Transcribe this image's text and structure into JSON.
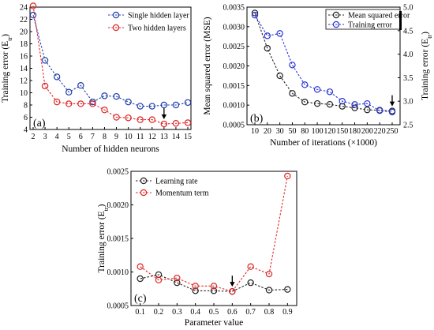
{
  "chart_data": [
    {
      "type": "line",
      "panel_label": "(a)",
      "xlabel": "Number of hidden neurons",
      "ylabel": "Training error (E",
      "ylabel_sub": "tr",
      "ylabel_tail": ")",
      "xlim": [
        2,
        15
      ],
      "ylim": [
        4,
        24
      ],
      "x_ticks": [
        2,
        3,
        4,
        5,
        6,
        7,
        8,
        9,
        10,
        11,
        12,
        13,
        14,
        15
      ],
      "y_ticks": [
        4,
        6,
        8,
        10,
        12,
        14,
        16,
        18,
        20,
        22,
        24
      ],
      "legend_position": "top-right",
      "x": [
        2,
        3,
        4,
        5,
        6,
        7,
        8,
        9,
        10,
        11,
        12,
        13,
        14,
        15
      ],
      "series": [
        {
          "name": "Single hidden layer",
          "color": "#1f3fa8",
          "values": [
            22.7,
            15.3,
            12.6,
            10.1,
            11.2,
            8.5,
            9.5,
            9.4,
            8.5,
            7.8,
            7.8,
            8.0,
            8.0,
            8.4
          ]
        },
        {
          "name": "Two hidden layers",
          "color": "#e02424",
          "values": [
            24.2,
            11.1,
            8.5,
            8.2,
            8.2,
            8.2,
            7.2,
            6.0,
            5.9,
            5.6,
            5.6,
            4.9,
            5.0,
            5.1
          ]
        }
      ],
      "arrow_marker": {
        "x": 13,
        "y": 4.9
      }
    },
    {
      "type": "line",
      "panel_label": "(b)",
      "xlabel": "Number of iterations (×1000)",
      "ylabel": "Mean squared error (MSE)",
      "y2label": "Training error (E",
      "y2label_sub": "tr",
      "y2label_tail": ")",
      "x_categories": [
        "10",
        "20",
        "30",
        "50",
        "80",
        "100",
        "120",
        "150",
        "180",
        "200",
        "220",
        "250"
      ],
      "ylim": [
        0.0005,
        0.0035
      ],
      "y_ticks": [
        "0.0005",
        "0.0010",
        "0.0015",
        "0.0020",
        "0.0025",
        "0.0030",
        "0.0035"
      ],
      "y2lim": [
        2.5,
        5.0
      ],
      "y2_ticks": [
        "2.5",
        "3.0",
        "3.5",
        "4.0",
        "4.5",
        "5.0"
      ],
      "legend_position": "top-right",
      "series": [
        {
          "name": "Mean squared error",
          "color": "#222222",
          "axis": "left",
          "values": [
            0.00335,
            0.00245,
            0.00175,
            0.0013,
            0.00108,
            0.00104,
            0.00102,
            0.00097,
            0.00093,
            0.00088,
            0.00087,
            0.00085
          ]
        },
        {
          "name": "Training error",
          "color": "#2a35d8",
          "axis": "right",
          "values": [
            4.83,
            4.39,
            4.44,
            3.77,
            3.35,
            3.25,
            3.2,
            3.0,
            2.93,
            2.95,
            2.8,
            2.77
          ]
        }
      ],
      "arrow_marker": {
        "x": "250",
        "y": 0.00085
      }
    },
    {
      "type": "line",
      "panel_label": "(c)",
      "xlabel": "Parameter value",
      "ylabel": "Training error (E",
      "ylabel_sub": "tr",
      "ylabel_tail": ")",
      "xlim": [
        0.05,
        0.95
      ],
      "x_ticks": [
        "0.1",
        "0.2",
        "0.3",
        "0.4",
        "0.5",
        "0.6",
        "0.7",
        "0.8",
        "0.9"
      ],
      "ylim": [
        0.0005,
        0.0025
      ],
      "y_ticks": [
        "0.0005",
        "0.0010",
        "0.0015",
        "0.0020",
        "0.0025"
      ],
      "legend_position": "top-left",
      "x": [
        0.1,
        0.2,
        0.3,
        0.4,
        0.5,
        0.6,
        0.7,
        0.8,
        0.9
      ],
      "series": [
        {
          "name": "Learning rate",
          "color": "#222222",
          "values": [
            0.0009,
            0.00096,
            0.00084,
            0.00072,
            0.00072,
            0.00071,
            0.00084,
            0.00073,
            0.00074
          ]
        },
        {
          "name": "Momentum term",
          "color": "#e02424",
          "values": [
            0.00108,
            0.00088,
            0.00091,
            0.00079,
            0.00079,
            0.00071,
            0.00108,
            0.00097,
            0.00243
          ]
        }
      ],
      "arrow_marker": {
        "x": 0.6,
        "y": 0.00071
      }
    }
  ]
}
